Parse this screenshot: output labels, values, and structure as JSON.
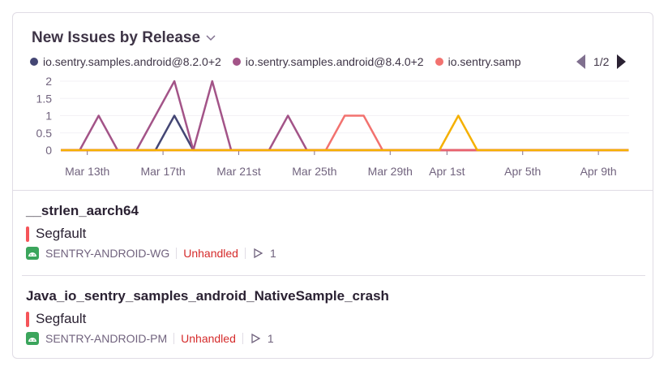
{
  "widget": {
    "title": "New Issues by Release",
    "pager": "1/2"
  },
  "legend": [
    {
      "label": "io.sentry.samples.android@8.2.0+2",
      "color": "#444674"
    },
    {
      "label": "io.sentry.samples.android@8.4.0+2",
      "color": "#a35488"
    },
    {
      "label": "io.sentry.samp",
      "color": "#f2726f"
    }
  ],
  "chart_data": {
    "type": "line",
    "x_start": "Mar 11",
    "x_end": "Apr 10",
    "ylim": [
      0,
      2
    ],
    "yticks": [
      "0",
      "0.5",
      "1",
      "1.5",
      "2"
    ],
    "xticks": [
      {
        "label": "Mar 13th",
        "day": 2
      },
      {
        "label": "Mar 17th",
        "day": 6
      },
      {
        "label": "Mar 21st",
        "day": 10
      },
      {
        "label": "Mar 25th",
        "day": 14
      },
      {
        "label": "Mar 29th",
        "day": 18
      },
      {
        "label": "Apr 1st",
        "day": 21
      },
      {
        "label": "Apr 5th",
        "day": 25
      },
      {
        "label": "Apr 9th",
        "day": 29
      }
    ],
    "series": [
      {
        "name": "io.sentry.samples.android@8.2.0+2",
        "color": "#444674",
        "values": [
          0,
          0,
          0,
          0,
          0,
          0,
          1,
          0,
          0,
          0,
          0,
          0,
          0,
          0,
          0,
          0,
          0,
          0,
          0,
          0,
          0,
          0,
          0,
          0,
          0,
          0,
          0,
          0,
          0,
          0,
          0
        ]
      },
      {
        "name": "io.sentry.samples.android@8.4.0+2",
        "color": "#a35488",
        "values": [
          0,
          0,
          1,
          0,
          0,
          1,
          2,
          0,
          2,
          0,
          0,
          0,
          1,
          0,
          0,
          0,
          0,
          0,
          0,
          0,
          0,
          0,
          0,
          0,
          0,
          0,
          0,
          0,
          0,
          0,
          0
        ]
      },
      {
        "name": "io.sentry.samp",
        "color": "#f2726f",
        "values": [
          0,
          0,
          0,
          0,
          0,
          0,
          0,
          0,
          0,
          0,
          0,
          0,
          0,
          0,
          0,
          1,
          1,
          0,
          0,
          0,
          0,
          0,
          0,
          0,
          0,
          0,
          0,
          0,
          0,
          0,
          0
        ]
      },
      {
        "color": "#e9626e",
        "values": [
          0,
          0,
          0,
          0,
          0,
          0,
          0,
          0,
          0,
          0,
          0,
          0,
          0,
          0,
          0,
          0,
          0,
          0,
          0,
          0,
          0,
          0,
          0,
          0,
          0,
          0,
          0,
          0,
          0,
          0,
          0
        ]
      },
      {
        "color": "#f5b000",
        "values": [
          0,
          0,
          0,
          0,
          0,
          0,
          0,
          0,
          0,
          0,
          0,
          0,
          0,
          0,
          0,
          0,
          0,
          0,
          0,
          0,
          0,
          1,
          0,
          0,
          0,
          0,
          0,
          0,
          0,
          0,
          0
        ]
      }
    ]
  },
  "issues": [
    {
      "title": "__strlen_aarch64",
      "type": "Segfault",
      "short_id": "SENTRY-ANDROID-WG",
      "status": "Unhandled",
      "count": "1"
    },
    {
      "title": "Java_io_sentry_samples_android_NativeSample_crash",
      "type": "Segfault",
      "short_id": "SENTRY-ANDROID-PM",
      "status": "Unhandled",
      "count": "1"
    }
  ]
}
